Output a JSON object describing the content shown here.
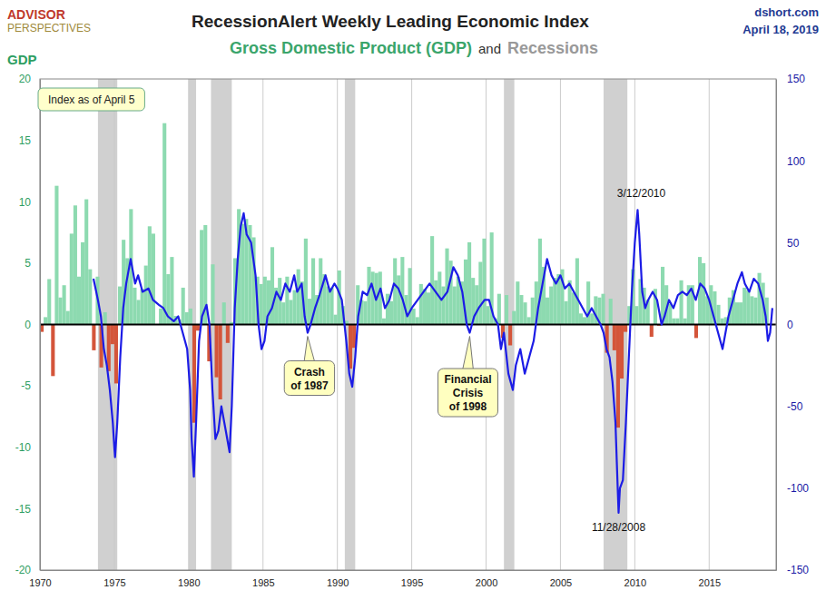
{
  "chart_data": {
    "type": "bar",
    "title": "RecessionAlert Weekly Leading Economic Index",
    "subtitle": [
      "Gross Domestic Product (GDP)",
      "and",
      "Recessions"
    ],
    "logo": [
      "ADVISOR",
      "PERSPECTIVES"
    ],
    "source": "dshort.com",
    "date": "April 18, 2019",
    "ylabel": "GDP",
    "note": "Index as of April 5",
    "xlim": [
      1970,
      2019.5
    ],
    "xticks": [
      1970,
      1975,
      1980,
      1985,
      1990,
      1995,
      2000,
      2005,
      2010,
      2015
    ],
    "ylim": [
      -20,
      20
    ],
    "yticks": [
      -20,
      -15,
      -10,
      -5,
      0,
      5,
      10,
      15,
      20
    ],
    "y2lim": [
      -150,
      150
    ],
    "y2ticks": [
      -150,
      -100,
      -50,
      0,
      50,
      100,
      150
    ],
    "grid": true,
    "recessions": {
      "color": "#c8c8c8",
      "periods": [
        [
          1973.9,
          1975.2
        ],
        [
          1980.0,
          1980.5
        ],
        [
          1981.5,
          1982.9
        ],
        [
          1990.5,
          1991.2
        ],
        [
          2001.2,
          2001.9
        ],
        [
          2007.9,
          2009.5
        ]
      ]
    },
    "series": [
      {
        "type": "bar",
        "x": [
          1970,
          1970.25,
          1970.5,
          1970.75,
          1971,
          1971.25,
          1971.5,
          1971.75,
          1972,
          1972.25,
          1972.5,
          1972.75,
          1973,
          1973.25,
          1973.5,
          1973.75,
          1974,
          1974.25,
          1974.5,
          1974.75,
          1975,
          1975.25,
          1975.5,
          1975.75,
          1976,
          1976.25,
          1976.5,
          1976.75,
          1977,
          1977.25,
          1977.5,
          1977.75,
          1978,
          1978.25,
          1978.5,
          1978.75,
          1979,
          1979.25,
          1979.5,
          1979.75,
          1980,
          1980.25,
          1980.5,
          1980.75,
          1981,
          1981.25,
          1981.5,
          1981.75,
          1982,
          1982.25,
          1982.5,
          1982.75,
          1983,
          1983.25,
          1983.5,
          1983.75,
          1984,
          1984.25,
          1984.5,
          1984.75,
          1985,
          1985.25,
          1985.5,
          1985.75,
          1986,
          1986.25,
          1986.5,
          1986.75,
          1987,
          1987.25,
          1987.5,
          1987.75,
          1988,
          1988.25,
          1988.5,
          1988.75,
          1989,
          1989.25,
          1989.5,
          1989.75,
          1990,
          1990.25,
          1990.5,
          1990.75,
          1991,
          1991.25,
          1991.5,
          1991.75,
          1992,
          1992.25,
          1992.5,
          1992.75,
          1993,
          1993.25,
          1993.5,
          1993.75,
          1994,
          1994.25,
          1994.5,
          1994.75,
          1995,
          1995.25,
          1995.5,
          1995.75,
          1996,
          1996.25,
          1996.5,
          1996.75,
          1997,
          1997.25,
          1997.5,
          1997.75,
          1998,
          1998.25,
          1998.5,
          1998.75,
          1999,
          1999.25,
          1999.5,
          1999.75,
          2000,
          2000.25,
          2000.5,
          2000.75,
          2001,
          2001.25,
          2001.5,
          2001.75,
          2002,
          2002.25,
          2002.5,
          2002.75,
          2003,
          2003.25,
          2003.5,
          2003.75,
          2004,
          2004.25,
          2004.5,
          2004.75,
          2005,
          2005.25,
          2005.5,
          2005.75,
          2006,
          2006.25,
          2006.5,
          2006.75,
          2007,
          2007.25,
          2007.5,
          2007.75,
          2008,
          2008.25,
          2008.5,
          2008.75,
          2009,
          2009.25,
          2009.5,
          2009.75,
          2010,
          2010.25,
          2010.5,
          2010.75,
          2011,
          2011.25,
          2011.5,
          2011.75,
          2012,
          2012.25,
          2012.5,
          2012.75,
          2013,
          2013.25,
          2013.5,
          2013.75,
          2014,
          2014.25,
          2014.5,
          2014.75,
          2015,
          2015.25,
          2015.5,
          2015.75,
          2016,
          2016.25,
          2016.5,
          2016.75,
          2017,
          2017.25,
          2017.5,
          2017.75,
          2018,
          2018.25,
          2018.5,
          2018.75
        ],
        "values": [
          -0.6,
          0.6,
          3.7,
          -4.2,
          11.3,
          2.2,
          3.2,
          1.1,
          7.4,
          9.7,
          3.9,
          6.7,
          10.2,
          4.5,
          -2.1,
          3.9,
          -3.5,
          1.0,
          -3.8,
          -1.6,
          -4.8,
          3.1,
          6.9,
          5.4,
          9.4,
          3.0,
          2.0,
          2.9,
          4.8,
          8.0,
          7.4,
          0.0,
          1.3,
          16.4,
          4.1,
          5.5,
          0.7,
          0.4,
          3.0,
          1.0,
          1.3,
          -8.0,
          -0.5,
          7.7,
          8.1,
          -3.0,
          4.9,
          -4.3,
          -6.1,
          1.8,
          -1.5,
          0.2,
          5.4,
          9.4,
          8.2,
          8.6,
          8.1,
          7.1,
          3.9,
          3.3,
          3.9,
          3.6,
          6.3,
          3.0,
          3.8,
          1.8,
          3.9,
          2.0,
          2.8,
          4.5,
          3.5,
          7.0,
          2.1,
          5.4,
          2.4,
          5.4,
          4.1,
          3.1,
          3.0,
          0.8,
          4.4,
          1.5,
          0.3,
          -3.6,
          -1.9,
          3.2,
          2.0,
          1.9,
          4.7,
          4.3,
          4.2,
          4.3,
          0.5,
          2.5,
          1.9,
          5.4,
          4.0,
          5.5,
          2.4,
          4.6,
          1.3,
          0.6,
          3.3,
          2.9,
          2.6,
          7.2,
          3.6,
          4.3,
          3.1,
          6.2,
          5.2,
          3.1,
          3.9,
          3.5,
          5.3,
          6.7,
          3.8,
          3.2,
          5.1,
          7.0,
          1.5,
          7.5,
          0.5,
          2.5,
          -1.1,
          2.4,
          -1.7,
          1.1,
          3.5,
          2.4,
          1.8,
          0.6,
          2.2,
          3.5,
          7.0,
          4.7,
          2.2,
          3.1,
          3.8,
          4.1,
          4.5,
          1.9,
          3.6,
          2.6,
          5.4,
          0.9,
          0.6,
          3.5,
          0.9,
          2.3,
          2.2,
          2.5,
          -2.3,
          2.1,
          -2.1,
          -8.4,
          -4.4,
          -0.6,
          1.5,
          4.5,
          1.5,
          3.7,
          3.0,
          2.0,
          -1.0,
          2.9,
          -0.1,
          4.7,
          3.2,
          1.7,
          0.5,
          0.5,
          3.6,
          0.5,
          3.2,
          3.2,
          -1.1,
          5.5,
          5.0,
          2.3,
          3.2,
          2.7,
          1.6,
          0.5,
          0.6,
          2.2,
          2.8,
          1.8,
          1.8,
          3.0,
          2.8,
          2.3,
          2.2,
          4.2,
          3.4,
          2.2
        ],
        "colors": [
          "#d4553a",
          "#8ddab0",
          "#8ddab0",
          "#d4553a",
          "#8ddab0",
          "#8ddab0",
          "#8ddab0",
          "#8ddab0",
          "#8ddab0",
          "#8ddab0",
          "#8ddab0",
          "#8ddab0",
          "#8ddab0",
          "#8ddab0",
          "#d4553a",
          "#8ddab0",
          "#d4553a",
          "#8ddab0",
          "#d4553a",
          "#d4553a",
          "#d4553a",
          "#8ddab0",
          "#8ddab0",
          "#8ddab0",
          "#8ddab0",
          "#8ddab0",
          "#8ddab0",
          "#8ddab0",
          "#8ddab0",
          "#8ddab0",
          "#8ddab0",
          "#8ddab0",
          "#8ddab0",
          "#8ddab0",
          "#8ddab0",
          "#8ddab0",
          "#8ddab0",
          "#8ddab0",
          "#8ddab0",
          "#8ddab0",
          "#8ddab0",
          "#d4553a",
          "#d4553a",
          "#8ddab0",
          "#8ddab0",
          "#d4553a",
          "#8ddab0",
          "#d4553a",
          "#d4553a",
          "#8ddab0",
          "#d4553a",
          "#8ddab0",
          "#8ddab0",
          "#8ddab0",
          "#8ddab0",
          "#8ddab0",
          "#8ddab0",
          "#8ddab0",
          "#8ddab0",
          "#8ddab0",
          "#8ddab0",
          "#8ddab0",
          "#8ddab0",
          "#8ddab0",
          "#8ddab0",
          "#8ddab0",
          "#8ddab0",
          "#8ddab0",
          "#8ddab0",
          "#8ddab0",
          "#8ddab0",
          "#8ddab0",
          "#8ddab0",
          "#8ddab0",
          "#8ddab0",
          "#8ddab0",
          "#8ddab0",
          "#8ddab0",
          "#8ddab0",
          "#8ddab0",
          "#8ddab0",
          "#8ddab0",
          "#8ddab0",
          "#d4553a",
          "#d4553a",
          "#8ddab0",
          "#8ddab0",
          "#8ddab0",
          "#8ddab0",
          "#8ddab0",
          "#8ddab0",
          "#8ddab0",
          "#8ddab0",
          "#8ddab0",
          "#8ddab0",
          "#8ddab0",
          "#8ddab0",
          "#8ddab0",
          "#8ddab0",
          "#8ddab0",
          "#8ddab0",
          "#8ddab0",
          "#8ddab0",
          "#8ddab0",
          "#8ddab0",
          "#8ddab0",
          "#8ddab0",
          "#8ddab0",
          "#8ddab0",
          "#8ddab0",
          "#8ddab0",
          "#8ddab0",
          "#8ddab0",
          "#8ddab0",
          "#8ddab0",
          "#8ddab0",
          "#8ddab0",
          "#8ddab0",
          "#8ddab0",
          "#8ddab0",
          "#8ddab0",
          "#8ddab0",
          "#8ddab0",
          "#8ddab0",
          "#d4553a",
          "#8ddab0",
          "#d4553a",
          "#8ddab0",
          "#8ddab0",
          "#8ddab0",
          "#8ddab0",
          "#8ddab0",
          "#8ddab0",
          "#8ddab0",
          "#8ddab0",
          "#8ddab0",
          "#8ddab0",
          "#8ddab0",
          "#8ddab0",
          "#8ddab0",
          "#8ddab0",
          "#8ddab0",
          "#8ddab0",
          "#8ddab0",
          "#8ddab0",
          "#8ddab0",
          "#8ddab0",
          "#8ddab0",
          "#8ddab0",
          "#8ddab0",
          "#8ddab0",
          "#8ddab0",
          "#d4553a",
          "#8ddab0",
          "#d4553a",
          "#d4553a",
          "#d4553a",
          "#d4553a",
          "#8ddab0",
          "#8ddab0",
          "#8ddab0",
          "#8ddab0",
          "#8ddab0",
          "#8ddab0",
          "#d4553a",
          "#8ddab0",
          "#d4553a",
          "#8ddab0",
          "#8ddab0",
          "#8ddab0",
          "#8ddab0",
          "#8ddab0",
          "#8ddab0",
          "#8ddab0",
          "#8ddab0",
          "#8ddab0",
          "#d4553a",
          "#8ddab0",
          "#8ddab0",
          "#8ddab0",
          "#8ddab0",
          "#8ddab0",
          "#8ddab0",
          "#8ddab0",
          "#8ddab0",
          "#8ddab0",
          "#8ddab0",
          "#8ddab0",
          "#8ddab0",
          "#8ddab0",
          "#8ddab0",
          "#8ddab0",
          "#8ddab0",
          "#8ddab0",
          "#8ddab0",
          "#8ddab0"
        ]
      },
      {
        "type": "line",
        "axis": "y2",
        "color": "#1c1ce6",
        "x": [
          1973.6,
          1973.9,
          1974.1,
          1974.3,
          1974.5,
          1974.7,
          1974.9,
          1975.0,
          1975.05,
          1975.2,
          1975.4,
          1975.6,
          1975.8,
          1976.0,
          1976.1,
          1976.4,
          1976.6,
          1976.9,
          1977.3,
          1977.6,
          1978.0,
          1978.3,
          1978.6,
          1979.0,
          1979.3,
          1979.6,
          1979.9,
          1980.1,
          1980.2,
          1980.35,
          1980.5,
          1980.7,
          1980.9,
          1981.2,
          1981.4,
          1981.6,
          1981.8,
          1982.0,
          1982.2,
          1982.5,
          1982.75,
          1982.9,
          1983.1,
          1983.3,
          1983.5,
          1983.7,
          1983.9,
          1984.2,
          1984.5,
          1984.7,
          1984.9,
          1985.1,
          1985.3,
          1985.6,
          1985.9,
          1986.2,
          1986.5,
          1986.8,
          1987.1,
          1987.3,
          1987.6,
          1987.8,
          1988.0,
          1988.2,
          1988.5,
          1988.8,
          1989.2,
          1989.5,
          1989.8,
          1990.0,
          1990.3,
          1990.6,
          1990.8,
          1991.0,
          1991.2,
          1991.4,
          1991.7,
          1992.0,
          1992.3,
          1992.6,
          1992.9,
          1993.2,
          1993.5,
          1993.8,
          1994.1,
          1994.4,
          1994.7,
          1995.0,
          1995.4,
          1995.8,
          1996.2,
          1996.6,
          1997.0,
          1997.4,
          1997.8,
          1998.1,
          1998.4,
          1998.7,
          1998.9,
          1999.2,
          1999.5,
          1999.9,
          2000.2,
          2000.5,
          2000.8,
          2001.0,
          2001.2,
          2001.5,
          2001.8,
          2002.0,
          2002.3,
          2002.6,
          2002.9,
          2003.2,
          2003.5,
          2003.8,
          2004.1,
          2004.4,
          2004.7,
          2005.0,
          2005.3,
          2005.6,
          2005.9,
          2006.2,
          2006.5,
          2006.8,
          2007.1,
          2007.4,
          2007.7,
          2007.9,
          2008.1,
          2008.3,
          2008.5,
          2008.7,
          2008.85,
          2008.91,
          2009.0,
          2009.2,
          2009.4,
          2009.6,
          2009.8,
          2010.0,
          2010.19,
          2010.3,
          2010.5,
          2010.7,
          2010.9,
          2011.2,
          2011.5,
          2011.8,
          2012.0,
          2012.3,
          2012.6,
          2012.9,
          2013.2,
          2013.5,
          2013.8,
          2014.1,
          2014.4,
          2014.7,
          2015.0,
          2015.3,
          2015.6,
          2015.9,
          2016.0,
          2016.3,
          2016.6,
          2016.9,
          2017.2,
          2017.4,
          2017.7,
          2018.0,
          2018.3,
          2018.6,
          2018.8,
          2018.95,
          2019.1,
          2019.25
        ],
        "values": [
          28,
          15,
          5,
          -15,
          -25,
          -40,
          -60,
          -75,
          -81,
          -60,
          -20,
          10,
          25,
          35,
          40,
          25,
          30,
          20,
          22,
          15,
          12,
          10,
          5,
          2,
          5,
          -5,
          -15,
          -40,
          -70,
          -93,
          -60,
          -10,
          5,
          12,
          0,
          -40,
          -70,
          -65,
          -50,
          -65,
          -78,
          -50,
          10,
          40,
          60,
          68,
          55,
          50,
          30,
          0,
          -15,
          -10,
          5,
          10,
          20,
          15,
          25,
          20,
          30,
          20,
          25,
          5,
          -5,
          0,
          10,
          18,
          30,
          20,
          25,
          22,
          15,
          -10,
          -30,
          -38,
          -20,
          5,
          20,
          18,
          25,
          15,
          22,
          10,
          15,
          25,
          22,
          15,
          5,
          10,
          15,
          20,
          25,
          20,
          15,
          20,
          35,
          30,
          20,
          0,
          -5,
          5,
          10,
          15,
          15,
          5,
          0,
          -15,
          -5,
          -30,
          -40,
          -25,
          -15,
          -30,
          -20,
          -10,
          10,
          25,
          40,
          30,
          25,
          30,
          22,
          25,
          20,
          15,
          10,
          5,
          10,
          5,
          0,
          -5,
          -15,
          -20,
          -35,
          -60,
          -100,
          -115,
          -100,
          -95,
          -60,
          -20,
          20,
          50,
          70,
          55,
          20,
          10,
          15,
          20,
          15,
          0,
          5,
          15,
          10,
          18,
          20,
          18,
          22,
          15,
          25,
          22,
          15,
          5,
          -5,
          -15,
          -10,
          5,
          15,
          25,
          32,
          25,
          20,
          28,
          25,
          15,
          5,
          -10,
          -5,
          10
        ]
      }
    ],
    "annotations": [
      {
        "lines": [
          "3/12/2010"
        ],
        "x": 2010.19,
        "y": 70,
        "axis": "y2"
      },
      {
        "lines": [
          "11/28/2008"
        ],
        "x": 2008.91,
        "y": -115,
        "axis": "y2"
      },
      {
        "lines": [
          "Crash",
          "of 1987"
        ],
        "x": 1988.0,
        "y": -5,
        "axis": "y2"
      },
      {
        "lines": [
          "Financial",
          "Crisis",
          "of 1998"
        ],
        "x": 1998.9,
        "y": -5,
        "axis": "y2"
      }
    ]
  }
}
